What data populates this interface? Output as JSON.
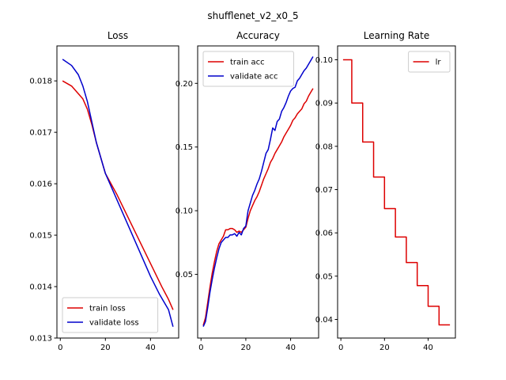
{
  "figure": {
    "suptitle": "shufflenet_v2_x0_5"
  },
  "chart_data": [
    {
      "type": "line",
      "title": "Loss",
      "xlabel": "",
      "ylabel": "",
      "xlim": [
        -1.5,
        52.5
      ],
      "ylim": [
        0.013,
        0.01868
      ],
      "xticks": [
        0,
        20,
        40
      ],
      "yticks": [
        0.013,
        0.014,
        0.015,
        0.016,
        0.017,
        0.018
      ],
      "ytick_labels": [
        "0.013",
        "0.014",
        "0.015",
        "0.016",
        "0.017",
        "0.018"
      ],
      "legend": "lower left",
      "series": [
        {
          "name": "train loss",
          "color": "#dd0000",
          "x": [
            1,
            5,
            10,
            12,
            14,
            16,
            18,
            20,
            25,
            30,
            35,
            40,
            45,
            48,
            50
          ],
          "y": [
            0.018,
            0.0179,
            0.01765,
            0.01745,
            0.01715,
            0.0168,
            0.0165,
            0.0162,
            0.0158,
            0.01535,
            0.0149,
            0.01445,
            0.014,
            0.01375,
            0.01355
          ]
        },
        {
          "name": "validate loss",
          "color": "#0000cc",
          "x": [
            1,
            5,
            8,
            10,
            12,
            14,
            16,
            18,
            20,
            25,
            30,
            35,
            40,
            44,
            48,
            50
          ],
          "y": [
            0.01842,
            0.0183,
            0.01812,
            0.0179,
            0.0176,
            0.0172,
            0.0168,
            0.0165,
            0.0162,
            0.0157,
            0.0152,
            0.0147,
            0.0142,
            0.01385,
            0.01355,
            0.01322
          ]
        }
      ]
    },
    {
      "type": "line",
      "title": "Accuracy",
      "xlabel": "",
      "ylabel": "",
      "xlim": [
        -1.5,
        52.5
      ],
      "ylim": [
        0.0,
        0.2294
      ],
      "xticks": [
        0,
        20,
        40
      ],
      "yticks": [
        0.05,
        0.1,
        0.15,
        0.2
      ],
      "ytick_labels": [
        "0.05",
        "0.10",
        "0.15",
        "0.20"
      ],
      "legend": "upper left",
      "series": [
        {
          "name": "train acc",
          "color": "#dd0000",
          "x": [
            1,
            2,
            3,
            4,
            5,
            6,
            7,
            8,
            9,
            10,
            11,
            12,
            13,
            14,
            15,
            16,
            17,
            18,
            19,
            20,
            21,
            22,
            23,
            24,
            25,
            26,
            27,
            28,
            29,
            30,
            31,
            32,
            33,
            34,
            35,
            36,
            37,
            38,
            39,
            40,
            41,
            42,
            43,
            44,
            45,
            46,
            47,
            48,
            49,
            50
          ],
          "y": [
            0.01,
            0.016,
            0.028,
            0.04,
            0.051,
            0.06,
            0.068,
            0.074,
            0.077,
            0.08,
            0.085,
            0.085,
            0.086,
            0.086,
            0.085,
            0.083,
            0.084,
            0.083,
            0.085,
            0.087,
            0.094,
            0.1,
            0.104,
            0.108,
            0.111,
            0.115,
            0.12,
            0.125,
            0.129,
            0.133,
            0.138,
            0.141,
            0.145,
            0.148,
            0.151,
            0.154,
            0.158,
            0.161,
            0.164,
            0.167,
            0.171,
            0.173,
            0.176,
            0.178,
            0.18,
            0.184,
            0.186,
            0.19,
            0.193,
            0.196
          ]
        },
        {
          "name": "validate acc",
          "color": "#0000cc",
          "x": [
            1,
            2,
            3,
            4,
            5,
            6,
            7,
            8,
            9,
            10,
            11,
            12,
            13,
            14,
            15,
            16,
            17,
            18,
            19,
            20,
            21,
            22,
            23,
            24,
            25,
            26,
            27,
            28,
            29,
            30,
            31,
            32,
            33,
            34,
            35,
            36,
            37,
            38,
            39,
            40,
            41,
            42,
            43,
            44,
            45,
            46,
            47,
            48,
            49,
            50
          ],
          "y": [
            0.009,
            0.013,
            0.024,
            0.036,
            0.046,
            0.055,
            0.063,
            0.07,
            0.075,
            0.077,
            0.079,
            0.079,
            0.081,
            0.081,
            0.082,
            0.08,
            0.083,
            0.081,
            0.086,
            0.088,
            0.1,
            0.106,
            0.112,
            0.116,
            0.121,
            0.125,
            0.131,
            0.138,
            0.145,
            0.148,
            0.156,
            0.165,
            0.163,
            0.17,
            0.172,
            0.178,
            0.181,
            0.185,
            0.19,
            0.194,
            0.196,
            0.197,
            0.202,
            0.204,
            0.207,
            0.21,
            0.212,
            0.215,
            0.218,
            0.221
          ]
        }
      ]
    },
    {
      "type": "line",
      "title": "Learning Rate",
      "xlabel": "",
      "ylabel": "",
      "xlim": [
        -1.5,
        52.5
      ],
      "ylim": [
        0.0357,
        0.1032
      ],
      "xticks": [
        0,
        20,
        40
      ],
      "yticks": [
        0.04,
        0.05,
        0.06,
        0.07,
        0.08,
        0.09,
        0.1
      ],
      "ytick_labels": [
        "0.04",
        "0.05",
        "0.06",
        "0.07",
        "0.08",
        "0.09",
        "0.10"
      ],
      "legend": "upper right",
      "series": [
        {
          "name": "lr",
          "color": "#dd0000",
          "step": "post",
          "x": [
            1,
            5,
            10,
            15,
            20,
            25,
            30,
            35,
            40,
            45,
            50
          ],
          "y": [
            0.1,
            0.09,
            0.081,
            0.0729,
            0.06561,
            0.059049,
            0.053144,
            0.04783,
            0.043047,
            0.038742,
            0.038742
          ]
        }
      ]
    }
  ]
}
